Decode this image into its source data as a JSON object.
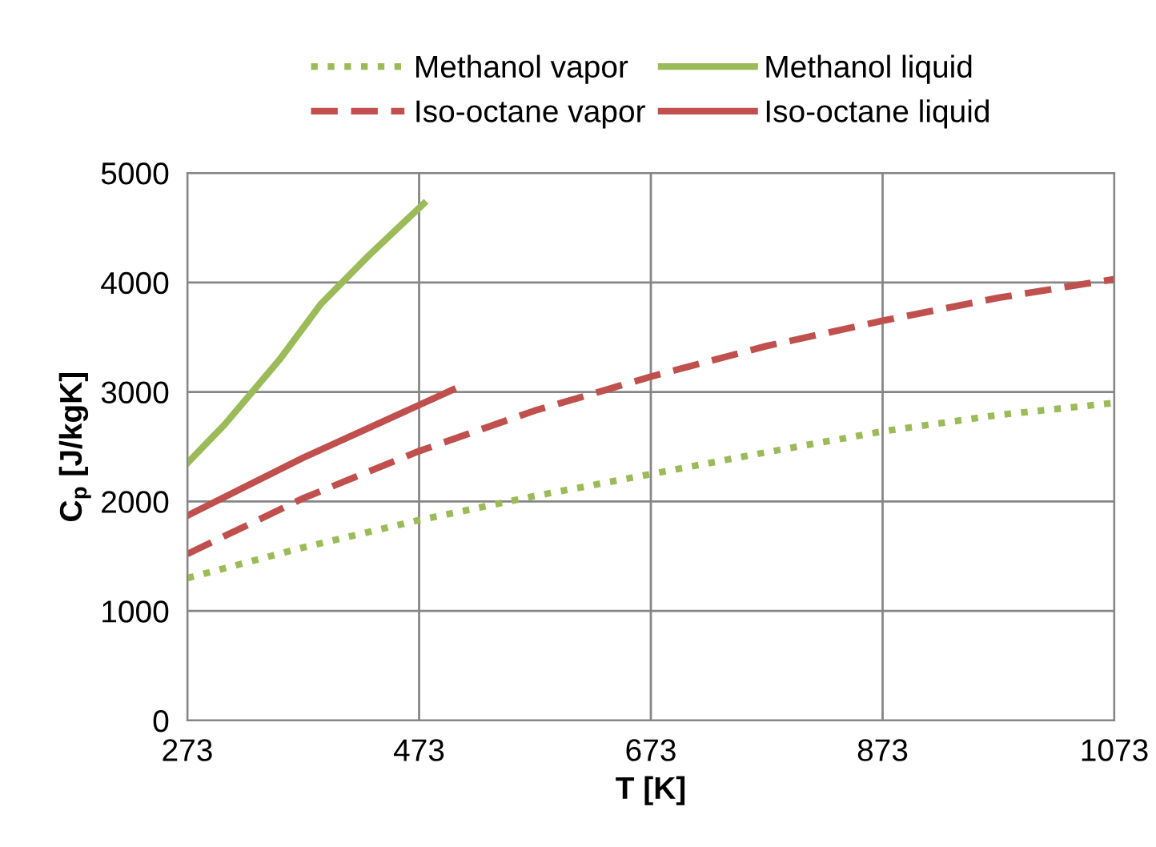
{
  "chart_data": {
    "type": "line",
    "xlabel": "T [K]",
    "ylabel": "C$_{p}$ [J/kgK]",
    "xlim": [
      273,
      1073
    ],
    "xticks": [
      273,
      473,
      673,
      873,
      1073
    ],
    "ylim": [
      0,
      5000
    ],
    "yticks": [
      0,
      1000,
      2000,
      3000,
      4000,
      5000
    ],
    "grid": true,
    "legend": "top",
    "marker": "none",
    "series": [
      {
        "name": "Methanol vapor",
        "color": "#9bbb59",
        "line_style": "dotted",
        "x": [
          273,
          373,
          473,
          573,
          673,
          773,
          873,
          973,
          1073
        ],
        "values": [
          1300,
          1580,
          1830,
          2050,
          2250,
          2450,
          2640,
          2790,
          2900
        ]
      },
      {
        "name": "Methanol liquid",
        "color": "#9bbb59",
        "line_style": "solid",
        "x": [
          273,
          305,
          353,
          388,
          429,
          477
        ],
        "values": [
          2350,
          2700,
          3300,
          3800,
          4240,
          4720
        ]
      },
      {
        "name": "Iso-octane vapor",
        "color": "#c0504d",
        "line_style": "dashed",
        "x": [
          273,
          373,
          473,
          573,
          673,
          773,
          873,
          973,
          1073
        ],
        "values": [
          1520,
          2030,
          2460,
          2830,
          3140,
          3420,
          3650,
          3860,
          4030
        ]
      },
      {
        "name": "Iso-octane liquid",
        "color": "#c0504d",
        "line_style": "solid",
        "x": [
          273,
          373,
          502
        ],
        "values": [
          1870,
          2400,
          3020
        ]
      }
    ]
  }
}
